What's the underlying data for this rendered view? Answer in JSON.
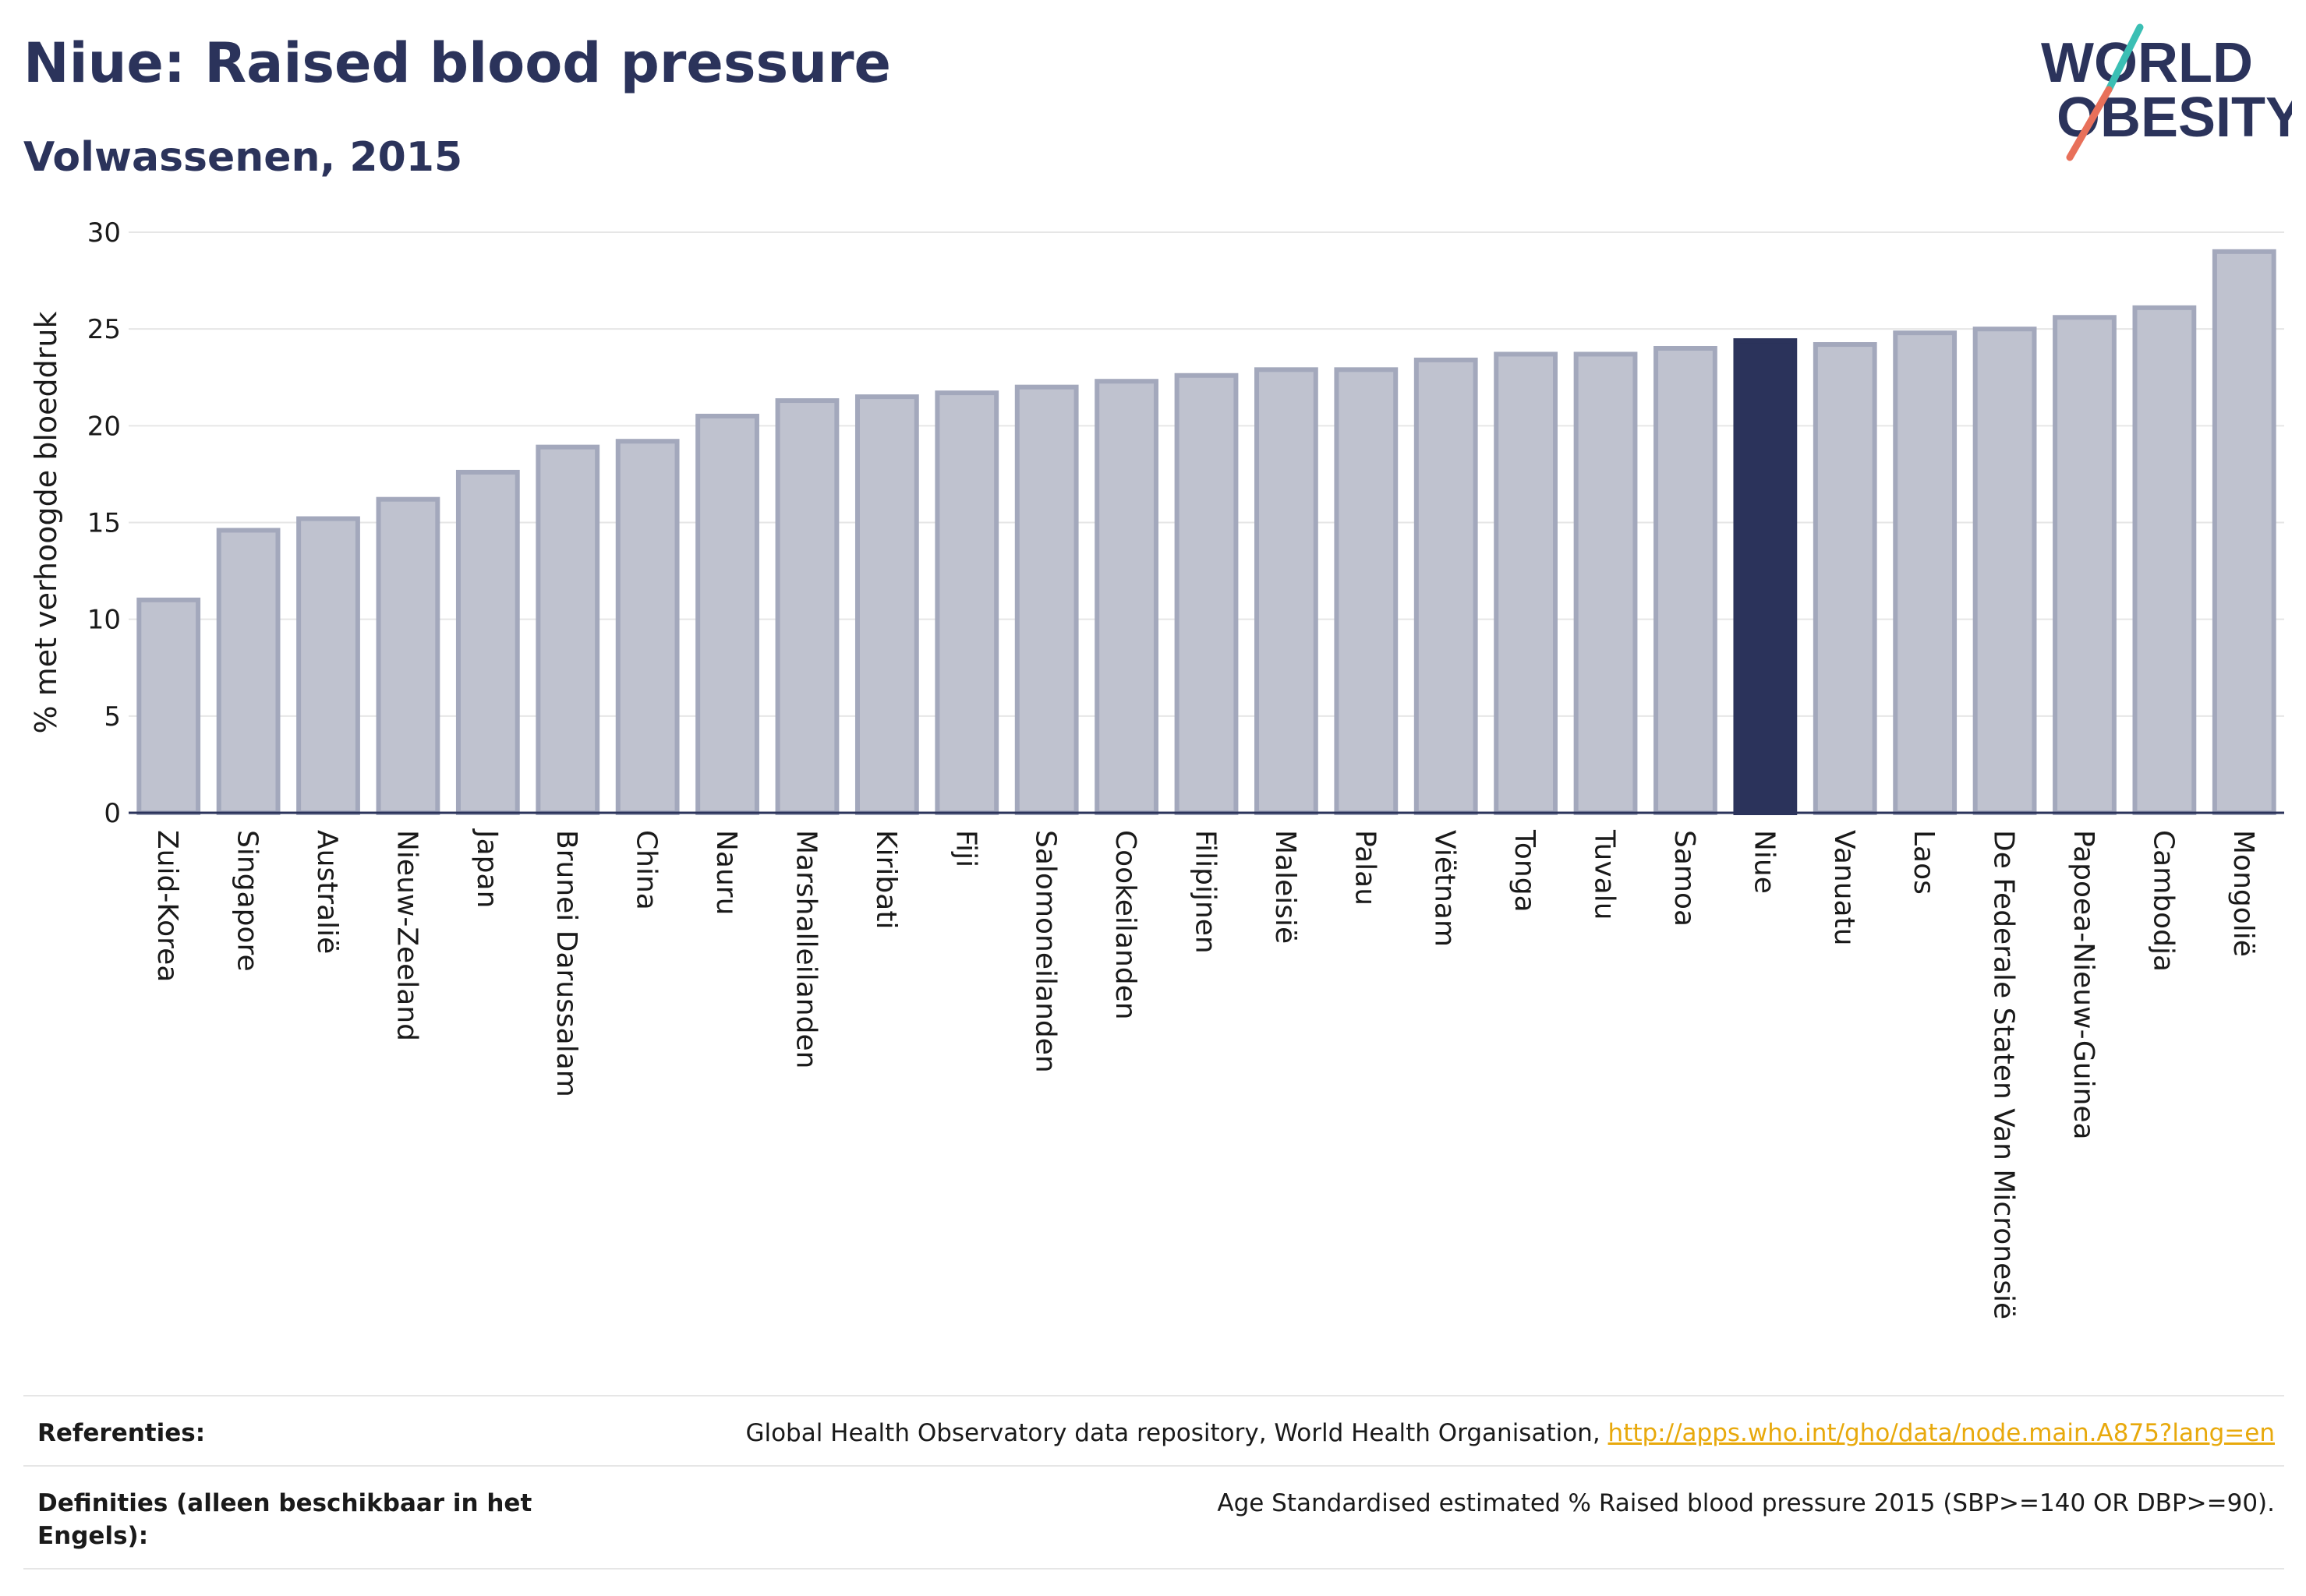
{
  "header": {
    "title": "Niue: Raised blood pressure",
    "subtitle": "Volwassenen, 2015"
  },
  "logo": {
    "line1": "WORLD",
    "line2": "OBESITY",
    "colors": {
      "text": "#2b335b",
      "slash_top": "#3bbfb4",
      "slash_bottom": "#e8705a"
    }
  },
  "chart_data": {
    "type": "bar",
    "title": "Niue: Raised blood pressure",
    "subtitle": "Volwassenen, 2015",
    "xlabel": "",
    "ylabel": "% met verhoogde bloeddruk",
    "ylim": [
      0,
      30
    ],
    "yticks": [
      0,
      5,
      10,
      15,
      20,
      25,
      30
    ],
    "grid": true,
    "highlight": "Niue",
    "colors": {
      "bar": "#bfc2cf",
      "bar_border": "#a3a8bc",
      "highlight": "#2b335b",
      "grid": "#e6e6e6",
      "axis": "#2b335b"
    },
    "categories": [
      "Zuid-Korea",
      "Singapore",
      "Australië",
      "Nieuw-Zeeland",
      "Japan",
      "Brunei Darussalam",
      "China",
      "Nauru",
      "Marshalleilanden",
      "Kiribati",
      "Fiji",
      "Salomoneilanden",
      "Cookeilanden",
      "Filipijnen",
      "Maleisië",
      "Palau",
      "Viëtnam",
      "Tonga",
      "Tuvalu",
      "Samoa",
      "Niue",
      "Vanuatu",
      "Laos",
      "De Federale Staten Van Micronesië",
      "Papoea-Nieuw-Guinea",
      "Cambodja",
      "Mongolië"
    ],
    "values": [
      11.0,
      14.6,
      15.2,
      16.2,
      17.6,
      18.9,
      19.2,
      20.5,
      21.3,
      21.5,
      21.7,
      22.0,
      22.3,
      22.6,
      22.9,
      22.9,
      23.4,
      23.7,
      23.7,
      24.0,
      24.4,
      24.2,
      24.8,
      25.0,
      25.6,
      26.1,
      29.0
    ]
  },
  "footer": {
    "references_label": "Referenties:",
    "references_text": "Global Health Observatory data repository, World Health Organisation, ",
    "references_link": "http://apps.who.int/gho/data/node.main.A875?lang=en",
    "definitions_label": "Definities (alleen beschikbaar in het Engels):",
    "definitions_text": "Age Standardised estimated % Raised blood pressure 2015 (SBP>=140 OR DBP>=90)."
  }
}
